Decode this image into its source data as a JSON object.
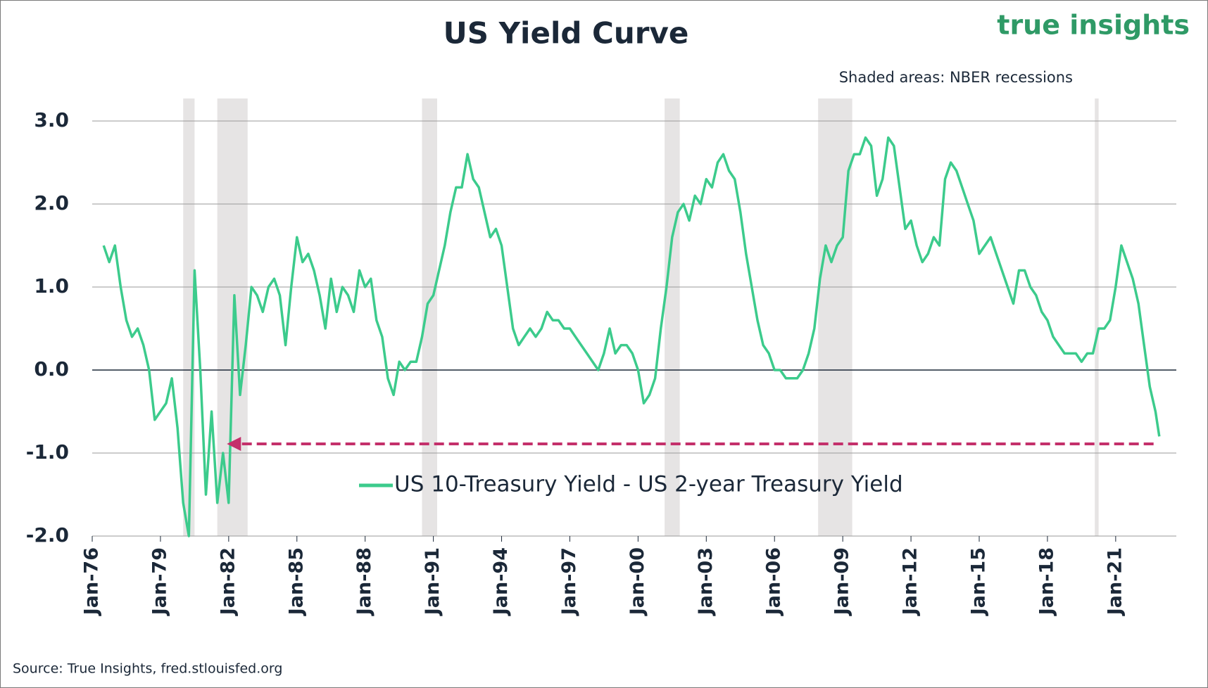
{
  "chart_data": {
    "type": "line",
    "title": "US Yield Curve",
    "logo": "true insights",
    "annotation": "Shaded areas: NBER recessions",
    "source": "Source: True Insights, fred.stlouisfed.org",
    "xlim": [
      "1976-01",
      "2023-09"
    ],
    "ylim": [
      -2,
      3
    ],
    "yticks": [
      {
        "value": 3,
        "label": "3.0"
      },
      {
        "value": 2,
        "label": "2.0"
      },
      {
        "value": 1,
        "label": "1.0"
      },
      {
        "value": 0,
        "label": "0.0"
      },
      {
        "value": -1,
        "label": "-1.0"
      },
      {
        "value": -2,
        "label": "-2.0"
      }
    ],
    "xticks": [
      {
        "value": "1976-01",
        "label": "Jan-76"
      },
      {
        "value": "1979-01",
        "label": "Jan-79"
      },
      {
        "value": "1982-01",
        "label": "Jan-82"
      },
      {
        "value": "1985-01",
        "label": "Jan-85"
      },
      {
        "value": "1988-01",
        "label": "Jan-88"
      },
      {
        "value": "1991-01",
        "label": "Jan-91"
      },
      {
        "value": "1994-01",
        "label": "Jan-94"
      },
      {
        "value": "1997-01",
        "label": "Jan-97"
      },
      {
        "value": "2000-01",
        "label": "Jan-00"
      },
      {
        "value": "2003-01",
        "label": "Jan-03"
      },
      {
        "value": "2006-01",
        "label": "Jan-06"
      },
      {
        "value": "2009-01",
        "label": "Jan-09"
      },
      {
        "value": "2012-01",
        "label": "Jan-12"
      },
      {
        "value": "2015-01",
        "label": "Jan-15"
      },
      {
        "value": "2018-01",
        "label": "Jan-18"
      },
      {
        "value": "2021-01",
        "label": "Jan-21"
      }
    ],
    "grid": true,
    "recessions": [
      [
        "1980-01",
        "1980-07"
      ],
      [
        "1981-07",
        "1982-11"
      ],
      [
        "1990-07",
        "1991-03"
      ],
      [
        "2001-03",
        "2001-11"
      ],
      [
        "2007-12",
        "2009-06"
      ],
      [
        "2020-02",
        "2020-04"
      ]
    ],
    "arrow": {
      "from": "2022-09",
      "to": "1982-06",
      "value": -0.89,
      "color": "#c4306b"
    },
    "x": [
      "1976-07",
      "1976-10",
      "1977-01",
      "1977-04",
      "1977-07",
      "1977-10",
      "1978-01",
      "1978-04",
      "1978-07",
      "1978-10",
      "1979-01",
      "1979-04",
      "1979-07",
      "1979-10",
      "1980-01",
      "1980-04",
      "1980-07",
      "1980-10",
      "1981-01",
      "1981-04",
      "1981-07",
      "1981-10",
      "1982-01",
      "1982-04",
      "1982-07",
      "1982-10",
      "1983-01",
      "1983-04",
      "1983-07",
      "1983-10",
      "1984-01",
      "1984-04",
      "1984-07",
      "1984-10",
      "1985-01",
      "1985-04",
      "1985-07",
      "1985-10",
      "1986-01",
      "1986-04",
      "1986-07",
      "1986-10",
      "1987-01",
      "1987-04",
      "1987-07",
      "1987-10",
      "1988-01",
      "1988-04",
      "1988-07",
      "1988-10",
      "1989-01",
      "1989-04",
      "1989-07",
      "1989-10",
      "1990-01",
      "1990-04",
      "1990-07",
      "1990-10",
      "1991-01",
      "1991-04",
      "1991-07",
      "1991-10",
      "1992-01",
      "1992-04",
      "1992-07",
      "1992-10",
      "1993-01",
      "1993-04",
      "1993-07",
      "1993-10",
      "1994-01",
      "1994-04",
      "1994-07",
      "1994-10",
      "1995-01",
      "1995-04",
      "1995-07",
      "1995-10",
      "1996-01",
      "1996-04",
      "1996-07",
      "1996-10",
      "1997-01",
      "1997-04",
      "1997-07",
      "1997-10",
      "1998-01",
      "1998-04",
      "1998-07",
      "1998-10",
      "1999-01",
      "1999-04",
      "1999-07",
      "1999-10",
      "2000-01",
      "2000-04",
      "2000-07",
      "2000-10",
      "2001-01",
      "2001-04",
      "2001-07",
      "2001-10",
      "2002-01",
      "2002-04",
      "2002-07",
      "2002-10",
      "2003-01",
      "2003-04",
      "2003-07",
      "2003-10",
      "2004-01",
      "2004-04",
      "2004-07",
      "2004-10",
      "2005-01",
      "2005-04",
      "2005-07",
      "2005-10",
      "2006-01",
      "2006-04",
      "2006-07",
      "2006-10",
      "2007-01",
      "2007-04",
      "2007-07",
      "2007-10",
      "2008-01",
      "2008-04",
      "2008-07",
      "2008-10",
      "2009-01",
      "2009-04",
      "2009-07",
      "2009-10",
      "2010-01",
      "2010-04",
      "2010-07",
      "2010-10",
      "2011-01",
      "2011-04",
      "2011-07",
      "2011-10",
      "2012-01",
      "2012-04",
      "2012-07",
      "2012-10",
      "2013-01",
      "2013-04",
      "2013-07",
      "2013-10",
      "2014-01",
      "2014-04",
      "2014-07",
      "2014-10",
      "2015-01",
      "2015-04",
      "2015-07",
      "2015-10",
      "2016-01",
      "2016-04",
      "2016-07",
      "2016-10",
      "2017-01",
      "2017-04",
      "2017-07",
      "2017-10",
      "2018-01",
      "2018-04",
      "2018-07",
      "2018-10",
      "2019-01",
      "2019-04",
      "2019-07",
      "2019-10",
      "2020-01",
      "2020-04",
      "2020-07",
      "2020-10",
      "2021-01",
      "2021-04",
      "2021-07",
      "2021-10",
      "2022-01",
      "2022-04",
      "2022-07",
      "2022-10",
      "2022-12"
    ],
    "series": [
      {
        "name": "US 10-Treasury Yield - US 2-year Treasury Yield",
        "color": "#3ccb8c",
        "values": [
          1.5,
          1.3,
          1.5,
          1.0,
          0.6,
          0.4,
          0.5,
          0.3,
          0.0,
          -0.6,
          -0.5,
          -0.4,
          -0.1,
          -0.7,
          -1.6,
          -2.0,
          1.2,
          0.0,
          -1.5,
          -0.5,
          -1.6,
          -1.0,
          -1.6,
          0.9,
          -0.3,
          0.3,
          1.0,
          0.9,
          0.7,
          1.0,
          1.1,
          0.9,
          0.3,
          1.0,
          1.6,
          1.3,
          1.4,
          1.2,
          0.9,
          0.5,
          1.1,
          0.7,
          1.0,
          0.9,
          0.7,
          1.2,
          1.0,
          1.1,
          0.6,
          0.4,
          -0.1,
          -0.3,
          0.1,
          0.0,
          0.1,
          0.1,
          0.4,
          0.8,
          0.9,
          1.2,
          1.5,
          1.9,
          2.2,
          2.2,
          2.6,
          2.3,
          2.2,
          1.9,
          1.6,
          1.7,
          1.5,
          1.0,
          0.5,
          0.3,
          0.4,
          0.5,
          0.4,
          0.5,
          0.7,
          0.6,
          0.6,
          0.5,
          0.5,
          0.4,
          0.3,
          0.2,
          0.1,
          0.0,
          0.2,
          0.5,
          0.2,
          0.3,
          0.3,
          0.2,
          0.0,
          -0.4,
          -0.3,
          -0.1,
          0.5,
          1.0,
          1.6,
          1.9,
          2.0,
          1.8,
          2.1,
          2.0,
          2.3,
          2.2,
          2.5,
          2.6,
          2.4,
          2.3,
          1.9,
          1.4,
          1.0,
          0.6,
          0.3,
          0.2,
          0.0,
          0.0,
          -0.1,
          -0.1,
          -0.1,
          0.0,
          0.2,
          0.5,
          1.1,
          1.5,
          1.3,
          1.5,
          1.6,
          2.4,
          2.6,
          2.6,
          2.8,
          2.7,
          2.1,
          2.3,
          2.8,
          2.7,
          2.2,
          1.7,
          1.8,
          1.5,
          1.3,
          1.4,
          1.6,
          1.5,
          2.3,
          2.5,
          2.4,
          2.2,
          2.0,
          1.8,
          1.4,
          1.5,
          1.6,
          1.4,
          1.2,
          1.0,
          0.8,
          1.2,
          1.2,
          1.0,
          0.9,
          0.7,
          0.6,
          0.4,
          0.3,
          0.2,
          0.2,
          0.2,
          0.1,
          0.2,
          0.2,
          0.5,
          0.5,
          0.6,
          1.0,
          1.5,
          1.3,
          1.1,
          0.8,
          0.3,
          -0.2,
          -0.5,
          -0.8
        ]
      }
    ]
  }
}
